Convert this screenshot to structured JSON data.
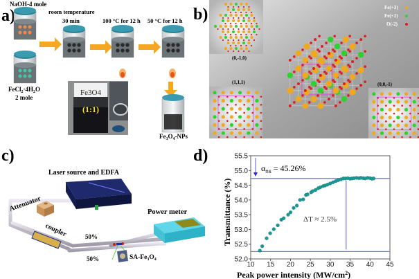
{
  "panels": {
    "a": "a)",
    "b": "b)",
    "c": "c)",
    "d": "d)"
  },
  "panel_a": {
    "reagent1": "NaOH-4 mole",
    "reagent2_main": "FeCl",
    "reagent2_sub1": "2",
    "reagent2_mid": "·4H",
    "reagent2_sub2": "2",
    "reagent2_end": "O",
    "reagent2_amount": "2 mole",
    "step1_line1": "room temperature",
    "step1_line2": "30 min",
    "step2": "100 °C for 12 h",
    "step3": "50 °C for 12 h",
    "photo_label": "Fe3O4",
    "photo_ratio": "(1:1)",
    "product_main": "Fe",
    "product_sub1": "3",
    "product_mid": "O",
    "product_sub2": "4",
    "product_end": "-NPs",
    "colors": {
      "arrow": "#f5a623",
      "jar_lid": "#2f8296",
      "liquid": "#6b7377",
      "naoh_dots": "#f08a4b",
      "fecl_dots": "#3cc9a8"
    }
  },
  "panel_b": {
    "view1": "(0,-1,0)",
    "view2": "(1,1,1)",
    "view3": "(0,0,-1)",
    "legend": [
      {
        "label": "Fe(+3)",
        "color": "#f0a81c"
      },
      {
        "label": "Fe(+2)",
        "color": "#2fd12f"
      },
      {
        "label": "O(-2)",
        "color": "#e31b1b"
      }
    ],
    "cell_edge_color": "#e040e0"
  },
  "panel_c": {
    "laser": "Laser source and EDFA",
    "attenuator": "Attenuator",
    "coupler": "coupler",
    "power_meter": "Power meter",
    "split1": "50%",
    "split2": "50%",
    "sa_main": "SA-Fe",
    "sa_sub1": "3",
    "sa_mid": "O",
    "sa_sub2": "4"
  },
  "chart_data": {
    "type": "scatter",
    "xlabel": "Peak power intensity (MW/cm²)",
    "xlabel_main": "Peak power intensity (MW/cm",
    "xlabel_sup": "2",
    "xlabel_end": ")",
    "ylabel": "Transmittance (%)",
    "xlim": [
      10,
      45
    ],
    "ylim": [
      52.0,
      55.5
    ],
    "xticks": [
      "10",
      "15",
      "20",
      "25",
      "30",
      "35",
      "40",
      "45"
    ],
    "yticks": [
      "52.0",
      "52.5",
      "53.0",
      "53.5",
      "54.0",
      "54.5",
      "55.0",
      "55.5"
    ],
    "grid": false,
    "marker_color": "#1a9a94",
    "line_color": "#6f6ff0",
    "annotation_alpha_main": "α",
    "annotation_alpha_sub": "ns",
    "annotation_alpha_value": " = 45.26%",
    "annotation_delta": "ΔT ≈ 2.5%",
    "saturation_level": 54.73,
    "baseline_level": 52.25,
    "delta_x": 34,
    "x": [
      12.3,
      12.9,
      14.0,
      14.9,
      15.8,
      16.8,
      17.7,
      18.3,
      19.4,
      20.0,
      20.8,
      21.6,
      22.4,
      23.2,
      23.9,
      24.3,
      25.2,
      25.6,
      26.3,
      27.0,
      27.5,
      28.2,
      28.7,
      29.3,
      30.0,
      30.7,
      31.4,
      32.0,
      32.7,
      33.3,
      33.8,
      34.4,
      35.0,
      35.5,
      36.0,
      36.6,
      37.2,
      37.7,
      38.3,
      38.8,
      39.4,
      40.0,
      40.5,
      40.9
    ],
    "y": [
      52.28,
      52.43,
      52.7,
      52.87,
      53.01,
      53.14,
      53.33,
      53.38,
      53.5,
      53.58,
      53.73,
      53.81,
      54.0,
      54.02,
      54.17,
      54.19,
      54.26,
      54.3,
      54.34,
      54.4,
      54.43,
      54.47,
      54.49,
      54.52,
      54.56,
      54.6,
      54.64,
      54.67,
      54.7,
      54.73,
      54.73,
      54.74,
      54.72,
      54.73,
      54.74,
      54.75,
      54.74,
      54.75,
      54.74,
      54.73,
      54.75,
      54.74,
      54.72,
      54.73
    ]
  }
}
